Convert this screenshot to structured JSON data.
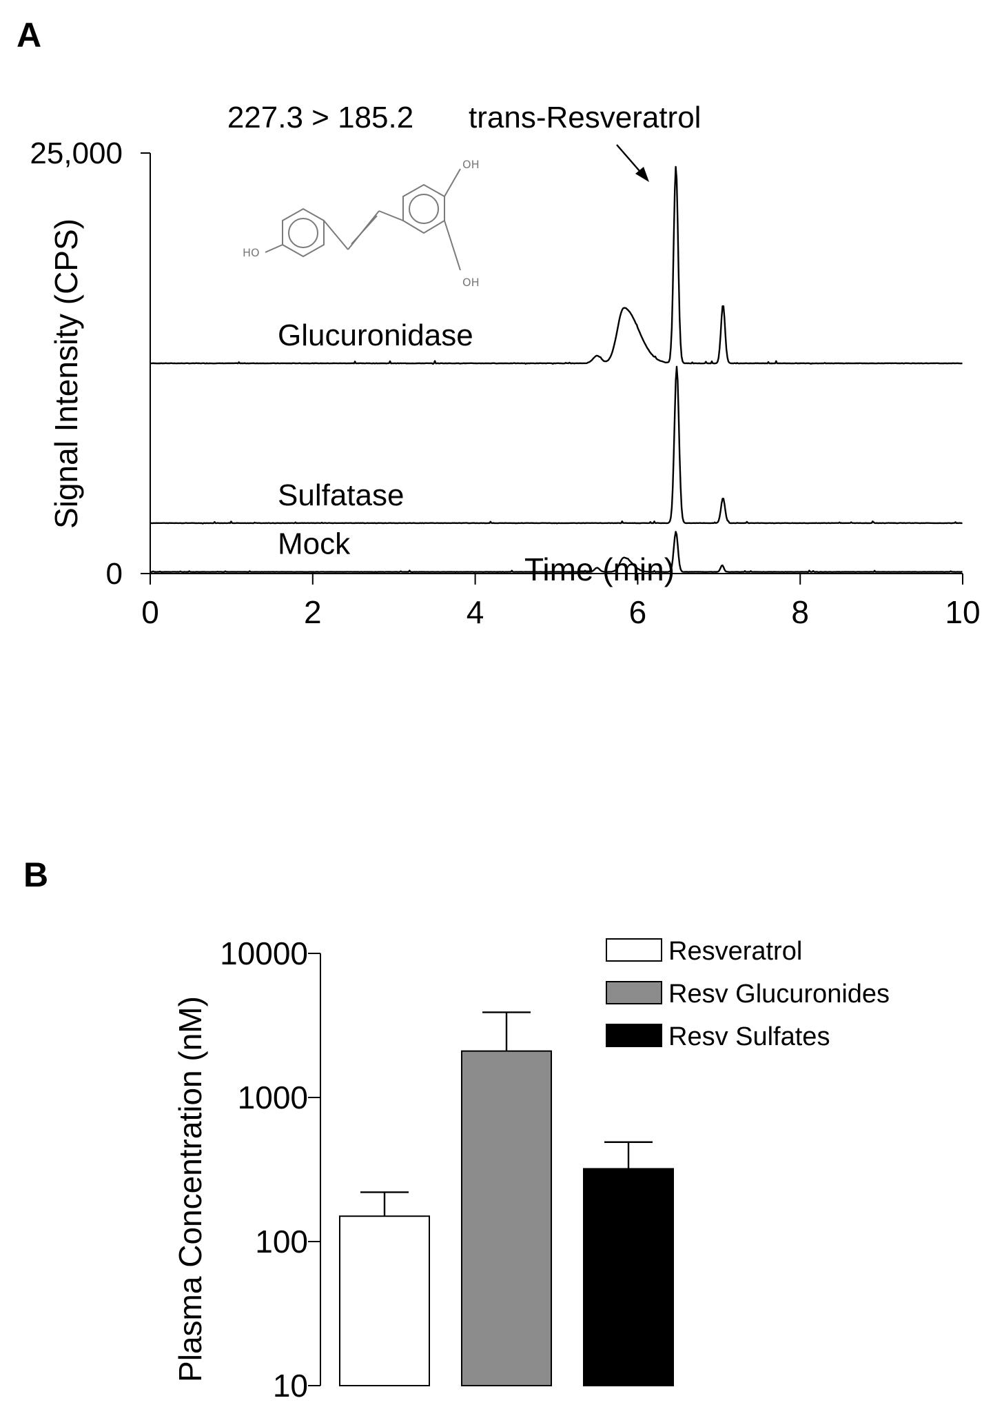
{
  "figure": {
    "panel_a_label": "A",
    "panel_b_label": "B"
  },
  "chart_data": [
    {
      "type": "line",
      "panel": "A",
      "ylabel": "Signal Intensity (CPS)",
      "xlabel": "Time (min)",
      "xlim": [
        0,
        10
      ],
      "x_ticks": [
        "0",
        "2",
        "4",
        "6",
        "8",
        "10"
      ],
      "x_tick_values": [
        0,
        2,
        4,
        6,
        8,
        10
      ],
      "y_ticks": [
        "0",
        "25,000"
      ],
      "y_tick_values": [
        0,
        25000
      ],
      "ylim": [
        0,
        25000
      ],
      "grid": false,
      "transition_label": "227.3 > 185.2",
      "arrow_label": "trans-Resveratrol",
      "structure_labels": [
        "HO",
        "OH",
        "OH"
      ],
      "series": [
        {
          "name": "Glucuronidase",
          "baseline": 12500,
          "noise": 180,
          "peaks": [
            {
              "time": 5.5,
              "height": 450,
              "width": 0.05
            },
            {
              "time": 5.83,
              "height": 3300,
              "width": 0.08,
              "tail": 0.18
            },
            {
              "time": 6.47,
              "height": 11700,
              "width": 0.027
            },
            {
              "time": 7.05,
              "height": 3500,
              "width": 0.025
            }
          ]
        },
        {
          "name": "Sulfatase",
          "baseline": 3000,
          "noise": 140,
          "peaks": [
            {
              "time": 6.48,
              "height": 9300,
              "width": 0.028
            },
            {
              "time": 7.05,
              "height": 1500,
              "width": 0.025
            }
          ]
        },
        {
          "name": "Mock",
          "baseline": 100,
          "noise": 110,
          "peaks": [
            {
              "time": 5.5,
              "height": 250,
              "width": 0.03
            },
            {
              "time": 5.83,
              "height": 850,
              "width": 0.05,
              "tail": 0.1
            },
            {
              "time": 6.47,
              "height": 2400,
              "width": 0.025
            },
            {
              "time": 7.04,
              "height": 400,
              "width": 0.02
            }
          ]
        }
      ]
    },
    {
      "type": "bar",
      "panel": "B",
      "ylabel": "Plasma Concentration (nM)",
      "xlabel": "",
      "yscale": "log",
      "ylim": [
        10,
        10000
      ],
      "y_ticks": [
        "10",
        "100",
        "1000",
        "10000"
      ],
      "y_tick_values": [
        10,
        100,
        1000,
        10000
      ],
      "grid": false,
      "legend_position": "top-right",
      "categories": [
        "Resveratrol",
        "Resv Glucuronides",
        "Resv Sulfates"
      ],
      "values": [
        150,
        2100,
        320
      ],
      "error_upper": [
        220,
        3900,
        490
      ],
      "colors": [
        "#ffffff",
        "#8c8c8c",
        "#000000"
      ]
    }
  ]
}
